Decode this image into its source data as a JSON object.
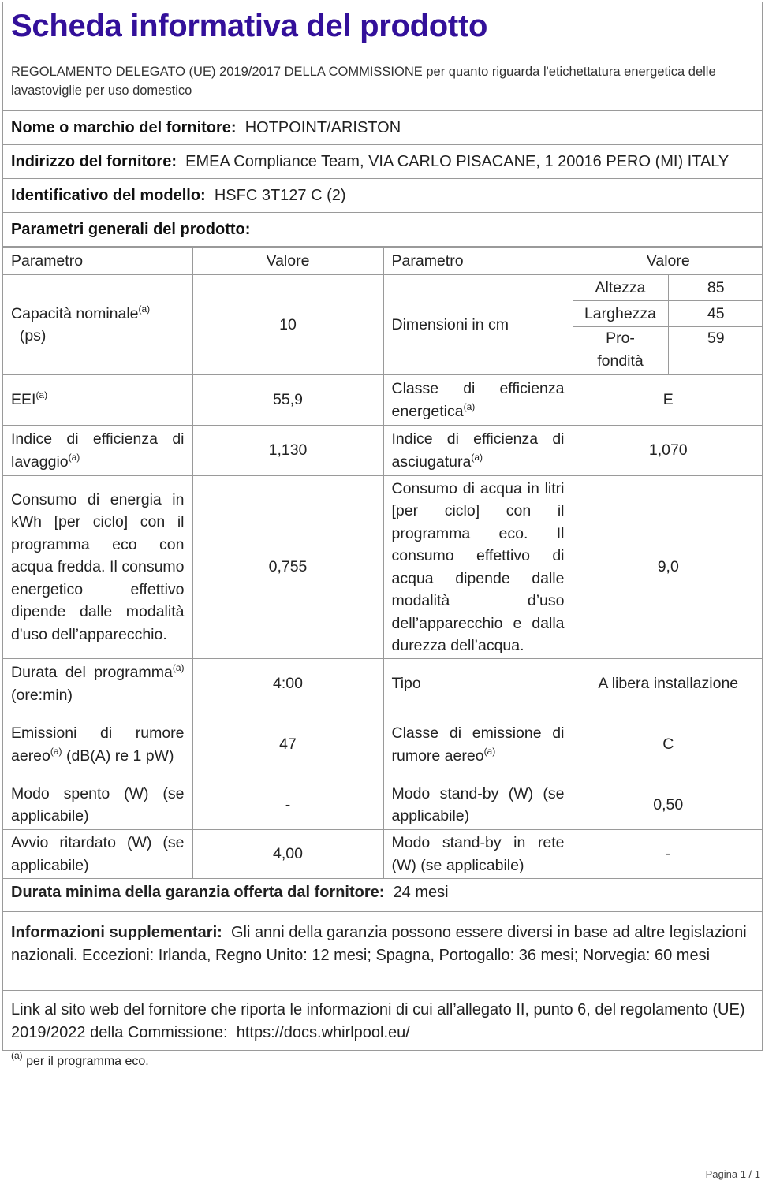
{
  "title": "Scheda informativa del prodotto",
  "regulation": "REGOLAMENTO DELEGATO (UE) 2019/2017 DELLA COMMISSIONE per quanto riguarda l'etichettatura energetica delle lavastoviglie per uso domestico",
  "supplier_name": {
    "label": "Nome o marchio del fornitore:",
    "value": "HOTPOINT/ARISTON"
  },
  "supplier_address": {
    "label": "Indirizzo del fornitore:",
    "value": "EMEA Compliance Team, VIA CARLO PISACANE, 1 20016 PERO (MI) ITALY"
  },
  "model_id": {
    "label": "Identificativo del modello:",
    "value": "HSFC 3T127 C (2)"
  },
  "general_params": "Parametri generali del prodotto:",
  "table": {
    "headers": [
      "Parametro",
      "Valore",
      "Parametro",
      "Valore"
    ],
    "footnote_mark": "(a)",
    "capacity": {
      "label": "Capacità nominale",
      "unit": "(ps)",
      "value": "10"
    },
    "dimensions": {
      "label": "Dimensioni in cm",
      "height_label": "Altezza",
      "height": "85",
      "width_label": "Larghezza",
      "width": "45",
      "depth_label": "Pro-fondità",
      "depth": "59"
    },
    "rows": [
      {
        "p1": "EEI",
        "v1": "55,9",
        "p2": "Classe di efficienza energetica",
        "v2": "E"
      },
      {
        "p1": "Indice di efficienza di lavaggio",
        "v1": "1,130",
        "p2": "Indice di efficienza di asciugatura",
        "v2": "1,070"
      },
      {
        "p1": "Consumo di energia in kWh [per ciclo] con il programma eco con acqua fredda. Il consumo energetico effettivo dipende dalle modalità d'uso dell’apparecchio.",
        "v1": "0,755",
        "p2": "Consumo di acqua in litri [per ciclo] con il programma eco. Il consumo effettivo di acqua dipende dalle modalità d’uso dell’apparecchio e dalla durezza dell’acqua.",
        "v2": "9,0"
      },
      {
        "p1": "Durata del programma",
        "p1b": "(ore:min)",
        "v1": "4:00",
        "p2": "Tipo",
        "v2": "A libera installazione"
      },
      {
        "p1": "Emissioni di rumore aereo",
        "p1b": "(dB(A) re 1 pW)",
        "v1": "47",
        "p2": "Classe di emissione di rumore aereo",
        "v2": "C"
      },
      {
        "p1": "Modo spento (W) (se applicabile)",
        "v1": "-",
        "p2": "Modo stand-by (W) (se applicabile)",
        "v2": "0,50"
      },
      {
        "p1": "Avvio ritardato (W) (se applicabile)",
        "v1": "4,00",
        "p2": "Modo stand-by in rete (W) (se applicabile)",
        "v2": "-"
      }
    ]
  },
  "warranty": {
    "label": "Durata minima della garanzia offerta dal fornitore:",
    "value": "24 mesi"
  },
  "supplementary": {
    "label": "Informazioni supplementari:",
    "value": "Gli anni della garanzia possono essere diversi in base ad altre legislazioni nazionali. Eccezioni: Irlanda, Regno Unito: 12 mesi; Spagna, Portogallo: 36 mesi; Norvegia: 60 mesi"
  },
  "link": {
    "text": "Link al sito web del fornitore che riporta le informazioni di cui all’allegato II, punto 6, del regolamento (UE) 2019/2022 della Commissione:",
    "url": "https://docs.whirlpool.eu/"
  },
  "footnote": {
    "mark": "(a)",
    "text": "per il programma eco."
  },
  "page": "Pagina 1 / 1",
  "colors": {
    "title": "#33109a",
    "border": "#9a9a9a"
  }
}
